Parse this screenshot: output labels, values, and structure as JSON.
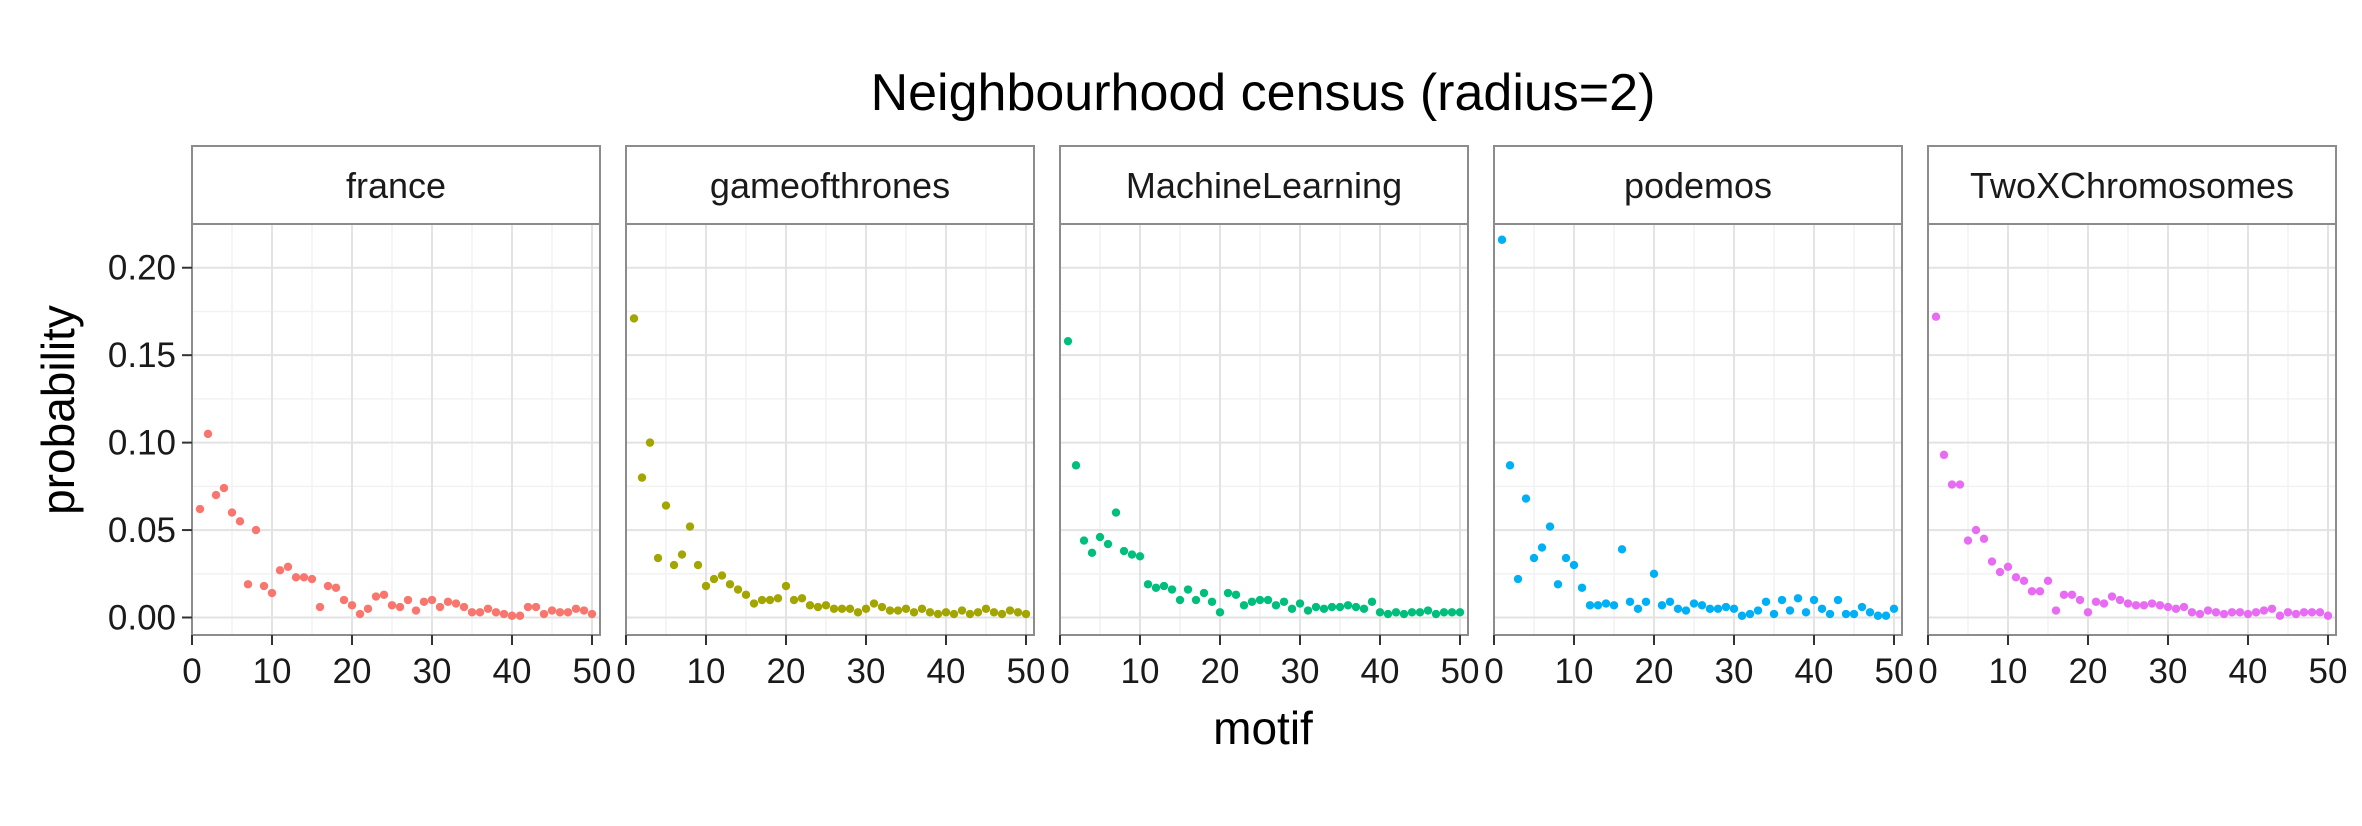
{
  "chart_data": {
    "type": "scatter",
    "title": "Neighbourhood census (radius=2)",
    "xlabel": "motif",
    "ylabel": "probability",
    "xlim": [
      0,
      51
    ],
    "ylim": [
      -0.01,
      0.225
    ],
    "x_ticks": [
      0,
      10,
      20,
      30,
      40,
      50
    ],
    "x_tick_labels": [
      "0",
      "10",
      "20",
      "30",
      "40",
      "50"
    ],
    "y_ticks": [
      0.0,
      0.05,
      0.1,
      0.15,
      0.2
    ],
    "y_tick_labels": [
      "0.00",
      "0.05",
      "0.10",
      "0.15",
      "0.20"
    ],
    "grid": true,
    "legend": "none",
    "facets": [
      {
        "name": "france",
        "color": "#F8766D",
        "x": [
          1,
          2,
          3,
          4,
          5,
          6,
          7,
          8,
          9,
          10,
          11,
          12,
          13,
          14,
          15,
          16,
          17,
          18,
          19,
          20,
          21,
          22,
          23,
          24,
          25,
          26,
          27,
          28,
          29,
          30,
          31,
          32,
          33,
          34,
          35,
          36,
          37,
          38,
          39,
          40,
          41,
          42,
          43,
          44,
          45,
          46,
          47,
          48,
          49,
          50
        ],
        "y": [
          0.062,
          0.105,
          0.07,
          0.074,
          0.06,
          0.055,
          0.019,
          0.05,
          0.018,
          0.014,
          0.027,
          0.029,
          0.023,
          0.023,
          0.022,
          0.006,
          0.018,
          0.017,
          0.01,
          0.007,
          0.002,
          0.005,
          0.012,
          0.013,
          0.007,
          0.006,
          0.01,
          0.004,
          0.009,
          0.01,
          0.006,
          0.009,
          0.008,
          0.006,
          0.003,
          0.003,
          0.005,
          0.003,
          0.002,
          0.001,
          0.001,
          0.006,
          0.006,
          0.002,
          0.004,
          0.003,
          0.003,
          0.005,
          0.004,
          0.002
        ]
      },
      {
        "name": "gameofthrones",
        "color": "#A3A500",
        "x": [
          1,
          2,
          3,
          4,
          5,
          6,
          7,
          8,
          9,
          10,
          11,
          12,
          13,
          14,
          15,
          16,
          17,
          18,
          19,
          20,
          21,
          22,
          23,
          24,
          25,
          26,
          27,
          28,
          29,
          30,
          31,
          32,
          33,
          34,
          35,
          36,
          37,
          38,
          39,
          40,
          41,
          42,
          43,
          44,
          45,
          46,
          47,
          48,
          49,
          50
        ],
        "y": [
          0.171,
          0.08,
          0.1,
          0.034,
          0.064,
          0.03,
          0.036,
          0.052,
          0.03,
          0.018,
          0.022,
          0.024,
          0.019,
          0.016,
          0.013,
          0.008,
          0.01,
          0.01,
          0.011,
          0.018,
          0.01,
          0.011,
          0.007,
          0.006,
          0.007,
          0.005,
          0.005,
          0.005,
          0.003,
          0.005,
          0.008,
          0.006,
          0.004,
          0.004,
          0.005,
          0.003,
          0.005,
          0.003,
          0.002,
          0.003,
          0.002,
          0.004,
          0.002,
          0.003,
          0.005,
          0.003,
          0.002,
          0.004,
          0.003,
          0.002
        ]
      },
      {
        "name": "MachineLearning",
        "color": "#00BF7D",
        "x": [
          1,
          2,
          3,
          4,
          5,
          6,
          7,
          8,
          9,
          10,
          11,
          12,
          13,
          14,
          15,
          16,
          17,
          18,
          19,
          20,
          21,
          22,
          23,
          24,
          25,
          26,
          27,
          28,
          29,
          30,
          31,
          32,
          33,
          34,
          35,
          36,
          37,
          38,
          39,
          40,
          41,
          42,
          43,
          44,
          45,
          46,
          47,
          48,
          49,
          50
        ],
        "y": [
          0.158,
          0.087,
          0.044,
          0.037,
          0.046,
          0.042,
          0.06,
          0.038,
          0.036,
          0.035,
          0.019,
          0.017,
          0.018,
          0.016,
          0.01,
          0.016,
          0.01,
          0.014,
          0.009,
          0.003,
          0.014,
          0.013,
          0.007,
          0.009,
          0.01,
          0.01,
          0.007,
          0.009,
          0.005,
          0.008,
          0.004,
          0.006,
          0.005,
          0.006,
          0.006,
          0.007,
          0.006,
          0.005,
          0.009,
          0.003,
          0.002,
          0.003,
          0.002,
          0.003,
          0.003,
          0.004,
          0.002,
          0.003,
          0.003,
          0.003
        ]
      },
      {
        "name": "podemos",
        "color": "#00B0F6",
        "x": [
          1,
          2,
          3,
          4,
          5,
          6,
          7,
          8,
          9,
          10,
          11,
          12,
          13,
          14,
          15,
          16,
          17,
          18,
          19,
          20,
          21,
          22,
          23,
          24,
          25,
          26,
          27,
          28,
          29,
          30,
          31,
          32,
          33,
          34,
          35,
          36,
          37,
          38,
          39,
          40,
          41,
          42,
          43,
          44,
          45,
          46,
          47,
          48,
          49,
          50
        ],
        "y": [
          0.216,
          0.087,
          0.022,
          0.068,
          0.034,
          0.04,
          0.052,
          0.019,
          0.034,
          0.03,
          0.017,
          0.007,
          0.007,
          0.008,
          0.007,
          0.039,
          0.009,
          0.005,
          0.009,
          0.025,
          0.007,
          0.009,
          0.005,
          0.004,
          0.008,
          0.007,
          0.005,
          0.005,
          0.006,
          0.005,
          0.001,
          0.002,
          0.004,
          0.009,
          0.002,
          0.01,
          0.004,
          0.011,
          0.003,
          0.01,
          0.005,
          0.002,
          0.01,
          0.002,
          0.002,
          0.006,
          0.003,
          0.001,
          0.001,
          0.005
        ]
      },
      {
        "name": "TwoXChromosomes",
        "color": "#E76BF3",
        "x": [
          1,
          2,
          3,
          4,
          5,
          6,
          7,
          8,
          9,
          10,
          11,
          12,
          13,
          14,
          15,
          16,
          17,
          18,
          19,
          20,
          21,
          22,
          23,
          24,
          25,
          26,
          27,
          28,
          29,
          30,
          31,
          32,
          33,
          34,
          35,
          36,
          37,
          38,
          39,
          40,
          41,
          42,
          43,
          44,
          45,
          46,
          47,
          48,
          49,
          50
        ],
        "y": [
          0.172,
          0.093,
          0.076,
          0.076,
          0.044,
          0.05,
          0.045,
          0.032,
          0.026,
          0.029,
          0.023,
          0.021,
          0.015,
          0.015,
          0.021,
          0.004,
          0.013,
          0.013,
          0.01,
          0.003,
          0.009,
          0.008,
          0.012,
          0.01,
          0.008,
          0.007,
          0.007,
          0.008,
          0.007,
          0.006,
          0.005,
          0.006,
          0.003,
          0.002,
          0.004,
          0.003,
          0.002,
          0.003,
          0.003,
          0.002,
          0.003,
          0.004,
          0.005,
          0.001,
          0.003,
          0.002,
          0.003,
          0.003,
          0.003,
          0.001
        ]
      }
    ]
  }
}
